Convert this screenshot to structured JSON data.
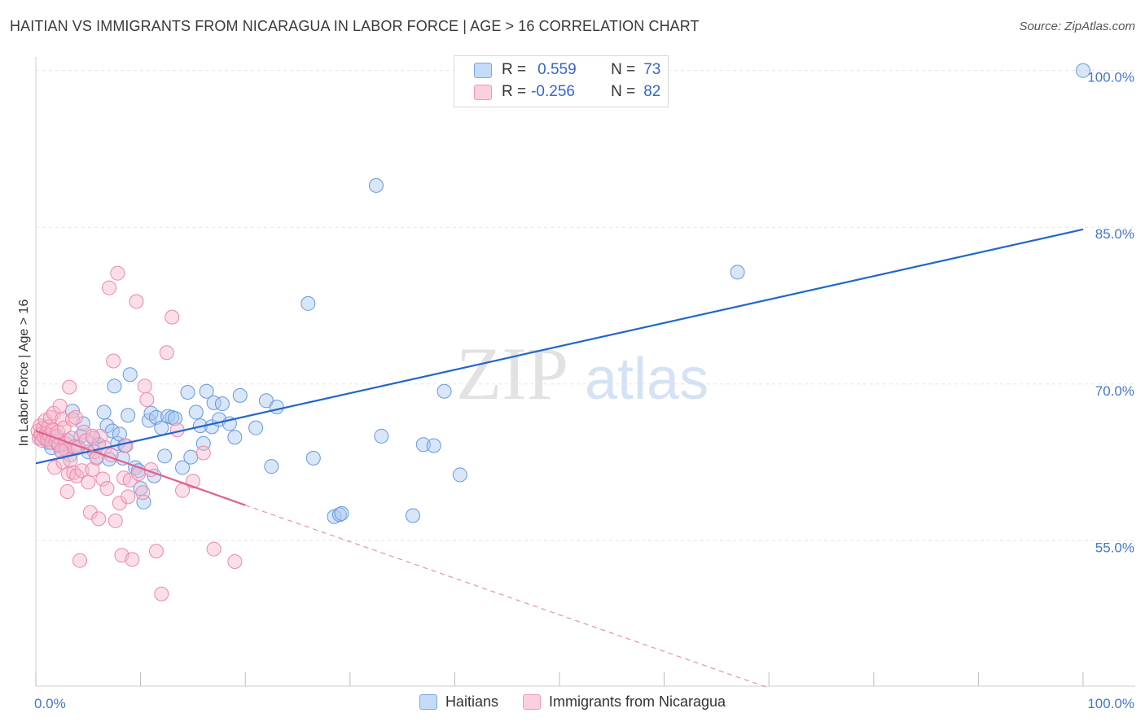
{
  "title": "HAITIAN VS IMMIGRANTS FROM NICARAGUA IN LABOR FORCE | AGE > 16 CORRELATION CHART",
  "source": "Source: ZipAtlas.com",
  "watermark": {
    "zip": "ZIP",
    "atlas": "atlas"
  },
  "legend": {
    "rows": [
      {
        "r_label": "R =",
        "r_value": "0.559",
        "n_label": "N =",
        "n_value": "73",
        "color": "#a8c8f0"
      },
      {
        "r_label": "R =",
        "r_value": "-0.256",
        "n_label": "N =",
        "n_value": "82",
        "color": "#f5b8cb"
      }
    ]
  },
  "bottom_legend": [
    {
      "label": "Haitians",
      "color": "#a8c8f0"
    },
    {
      "label": "Immigrants from Nicaragua",
      "color": "#f5b8cb"
    }
  ],
  "chart_data": {
    "type": "scatter",
    "title": "HAITIAN VS IMMIGRANTS FROM NICARAGUA IN LABOR FORCE | AGE > 16 CORRELATION CHART",
    "xlabel": "",
    "ylabel": "In Labor Force | Age > 16",
    "xlim": [
      0,
      100
    ],
    "ylim": [
      41,
      102
    ],
    "x_tick_labels": [
      "0.0%",
      "100.0%"
    ],
    "y_ticks": [
      55,
      70,
      85,
      100
    ],
    "y_tick_labels": [
      "55.0%",
      "70.0%",
      "85.0%",
      "100.0%"
    ],
    "grid": true,
    "legend_position": "top-center",
    "series": [
      {
        "name": "Haitians",
        "color": "#6699dd",
        "fill": "#a8c8f0",
        "trend": {
          "x0": 0,
          "y0": 62.4,
          "x1": 100,
          "y1": 84.8,
          "style": "solid",
          "color": "#2266cc"
        },
        "points": [
          [
            0.5,
            64.8
          ],
          [
            1.0,
            65.2
          ],
          [
            1.2,
            64.4
          ],
          [
            1.5,
            63.9
          ],
          [
            2.0,
            65.0
          ],
          [
            2.2,
            64.1
          ],
          [
            2.5,
            63.5
          ],
          [
            3.0,
            64.6
          ],
          [
            3.3,
            63.2
          ],
          [
            3.5,
            67.4
          ],
          [
            4.0,
            64.0
          ],
          [
            4.3,
            65.0
          ],
          [
            4.5,
            66.2
          ],
          [
            5.0,
            63.5
          ],
          [
            5.5,
            64.8
          ],
          [
            5.8,
            63.0
          ],
          [
            6.0,
            64.2
          ],
          [
            6.5,
            67.3
          ],
          [
            6.8,
            66.0
          ],
          [
            7.0,
            62.8
          ],
          [
            7.3,
            65.5
          ],
          [
            7.5,
            69.8
          ],
          [
            7.8,
            64.3
          ],
          [
            8.0,
            65.2
          ],
          [
            8.3,
            62.9
          ],
          [
            8.5,
            64.1
          ],
          [
            8.8,
            67.0
          ],
          [
            9.0,
            70.9
          ],
          [
            9.5,
            62.0
          ],
          [
            9.8,
            61.7
          ],
          [
            10.0,
            60.0
          ],
          [
            10.3,
            58.7
          ],
          [
            10.8,
            66.5
          ],
          [
            11.0,
            67.2
          ],
          [
            11.3,
            61.2
          ],
          [
            11.5,
            66.8
          ],
          [
            12.0,
            65.8
          ],
          [
            12.3,
            63.1
          ],
          [
            12.6,
            66.9
          ],
          [
            13.0,
            66.8
          ],
          [
            13.3,
            66.7
          ],
          [
            14.0,
            62.0
          ],
          [
            14.5,
            69.2
          ],
          [
            14.8,
            63.0
          ],
          [
            15.3,
            67.3
          ],
          [
            15.7,
            66.0
          ],
          [
            16.0,
            64.3
          ],
          [
            16.3,
            69.3
          ],
          [
            16.8,
            65.9
          ],
          [
            17.0,
            68.2
          ],
          [
            17.5,
            66.6
          ],
          [
            17.8,
            68.1
          ],
          [
            18.5,
            66.2
          ],
          [
            19.0,
            64.9
          ],
          [
            19.5,
            68.9
          ],
          [
            21.0,
            65.8
          ],
          [
            22.0,
            68.4
          ],
          [
            22.5,
            62.1
          ],
          [
            23.0,
            67.8
          ],
          [
            26.0,
            77.7
          ],
          [
            26.5,
            62.9
          ],
          [
            28.5,
            57.3
          ],
          [
            29.0,
            57.5
          ],
          [
            29.2,
            57.6
          ],
          [
            32.5,
            89.0
          ],
          [
            33.0,
            65.0
          ],
          [
            36.0,
            57.4
          ],
          [
            37.0,
            64.2
          ],
          [
            38.0,
            64.1
          ],
          [
            39.0,
            69.3
          ],
          [
            40.5,
            61.3
          ],
          [
            67.0,
            80.7
          ],
          [
            100.0,
            100.0
          ]
        ]
      },
      {
        "name": "Immigrants from Nicaragua",
        "color": "#ee88aa",
        "fill": "#f5b8cb",
        "trend": {
          "x0": 0,
          "y0": 65.5,
          "x1": 20.0,
          "y1": 58.4,
          "style": "solid",
          "color": "#e06090"
        },
        "trend_extension": {
          "x0": 20.0,
          "y0": 58.4,
          "x1": 70.0,
          "y1": 40.9,
          "style": "dashed",
          "color": "#e890b0"
        },
        "points": [
          [
            0.2,
            65.5
          ],
          [
            0.3,
            64.8
          ],
          [
            0.4,
            66.0
          ],
          [
            0.5,
            65.2
          ],
          [
            0.6,
            64.6
          ],
          [
            0.7,
            65.8
          ],
          [
            0.8,
            64.9
          ],
          [
            0.9,
            66.5
          ],
          [
            1.0,
            65.3
          ],
          [
            1.1,
            64.7
          ],
          [
            1.2,
            65.9
          ],
          [
            1.3,
            65.1
          ],
          [
            1.4,
            66.8
          ],
          [
            1.5,
            64.4
          ],
          [
            1.6,
            65.6
          ],
          [
            1.7,
            67.2
          ],
          [
            1.8,
            62.0
          ],
          [
            1.9,
            64.5
          ],
          [
            2.0,
            65.0
          ],
          [
            2.1,
            65.4
          ],
          [
            2.2,
            64.2
          ],
          [
            2.3,
            67.9
          ],
          [
            2.5,
            66.6
          ],
          [
            2.6,
            62.5
          ],
          [
            2.7,
            65.8
          ],
          [
            2.8,
            64.3
          ],
          [
            2.9,
            63.7
          ],
          [
            3.0,
            59.7
          ],
          [
            3.1,
            61.4
          ],
          [
            3.2,
            69.7
          ],
          [
            3.3,
            62.7
          ],
          [
            3.4,
            64.8
          ],
          [
            3.5,
            66.6
          ],
          [
            3.6,
            61.5
          ],
          [
            3.7,
            64.0
          ],
          [
            3.8,
            66.8
          ],
          [
            3.9,
            61.2
          ],
          [
            4.0,
            63.9
          ],
          [
            4.2,
            53.1
          ],
          [
            4.4,
            61.7
          ],
          [
            4.6,
            65.4
          ],
          [
            4.8,
            64.6
          ],
          [
            5.0,
            60.6
          ],
          [
            5.2,
            57.7
          ],
          [
            5.4,
            61.8
          ],
          [
            5.6,
            63.5
          ],
          [
            5.8,
            62.9
          ],
          [
            6.0,
            57.1
          ],
          [
            6.2,
            65.0
          ],
          [
            6.4,
            60.9
          ],
          [
            6.6,
            63.9
          ],
          [
            6.8,
            60.0
          ],
          [
            7.0,
            79.2
          ],
          [
            7.2,
            63.2
          ],
          [
            7.4,
            72.2
          ],
          [
            7.6,
            56.9
          ],
          [
            7.8,
            80.6
          ],
          [
            8.0,
            58.6
          ],
          [
            8.2,
            53.6
          ],
          [
            8.4,
            61.0
          ],
          [
            8.6,
            64.1
          ],
          [
            8.8,
            59.2
          ],
          [
            9.0,
            60.8
          ],
          [
            9.2,
            53.2
          ],
          [
            9.6,
            77.9
          ],
          [
            9.8,
            61.4
          ],
          [
            10.2,
            59.6
          ],
          [
            10.4,
            69.8
          ],
          [
            10.6,
            68.5
          ],
          [
            11.0,
            61.8
          ],
          [
            11.5,
            54.0
          ],
          [
            12.0,
            49.9
          ],
          [
            12.5,
            73.0
          ],
          [
            13.0,
            76.4
          ],
          [
            13.5,
            65.6
          ],
          [
            14.0,
            59.8
          ],
          [
            15.0,
            60.7
          ],
          [
            16.0,
            63.4
          ],
          [
            17.0,
            54.2
          ],
          [
            19.0,
            53.0
          ],
          [
            5.4,
            65.0
          ],
          [
            2.4,
            63.6
          ]
        ]
      }
    ]
  }
}
